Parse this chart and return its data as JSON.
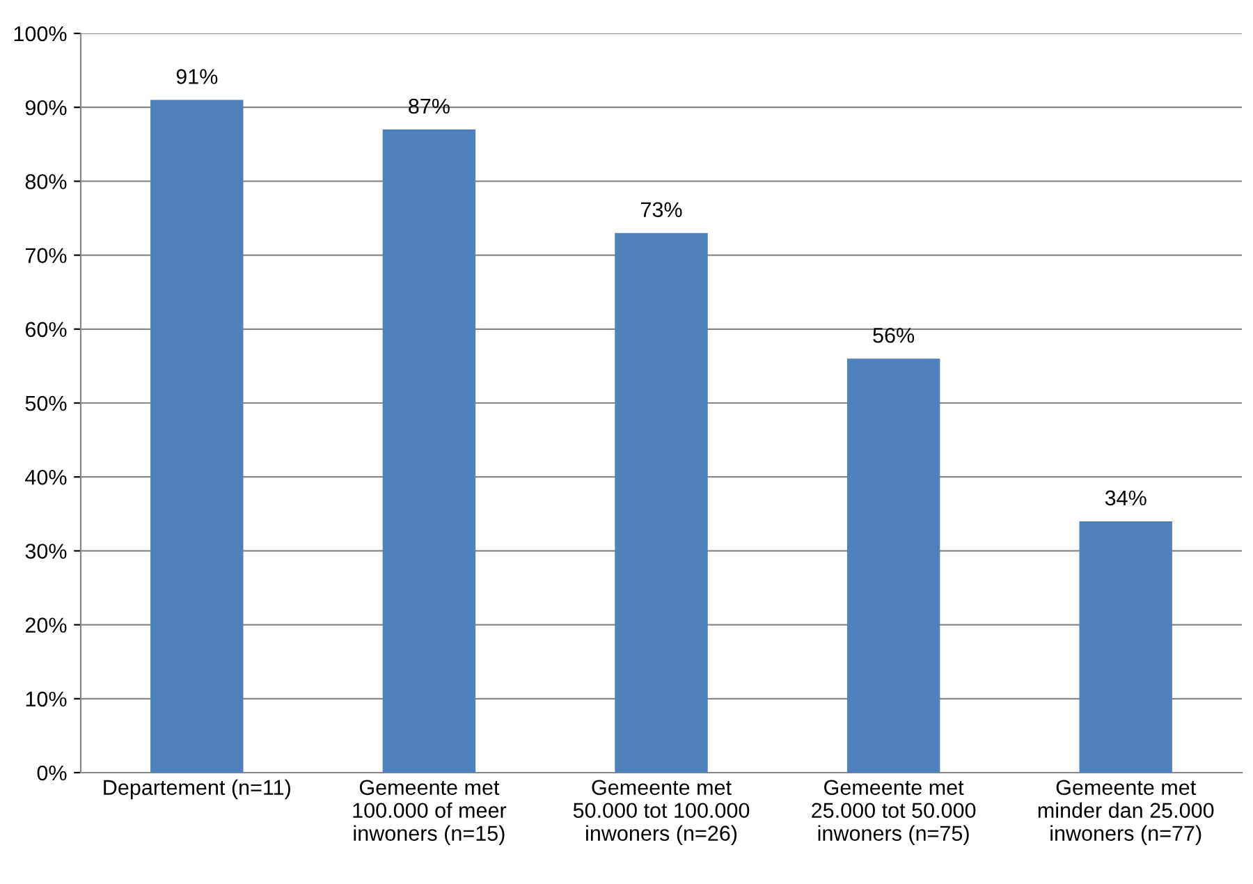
{
  "chart_data": {
    "type": "bar",
    "categories": [
      "Departement (n=11)",
      "Gemeente met\n100.000 of meer\ninwoners (n=15)",
      "Gemeente met\n50.000 tot 100.000\ninwoners (n=26)",
      "Gemeente met\n25.000 tot 50.000\ninwoners (n=75)",
      "Gemeente met\nminder dan 25.000\ninwoners (n=77)"
    ],
    "values": [
      91,
      87,
      73,
      56,
      34
    ],
    "value_labels": [
      "91%",
      "87%",
      "73%",
      "56%",
      "34%"
    ],
    "color": "#4f81bd",
    "ylim": [
      0,
      100
    ],
    "yticks": [
      {
        "value": 0,
        "label": "0%"
      },
      {
        "value": 10,
        "label": "10%"
      },
      {
        "value": 20,
        "label": "20%"
      },
      {
        "value": 30,
        "label": "30%"
      },
      {
        "value": 40,
        "label": "40%"
      },
      {
        "value": 50,
        "label": "50%"
      },
      {
        "value": 60,
        "label": "60%"
      },
      {
        "value": 70,
        "label": "70%"
      },
      {
        "value": 80,
        "label": "80%"
      },
      {
        "value": 90,
        "label": "90%"
      },
      {
        "value": 100,
        "label": "100%"
      }
    ],
    "grid": "y",
    "legend": false
  }
}
